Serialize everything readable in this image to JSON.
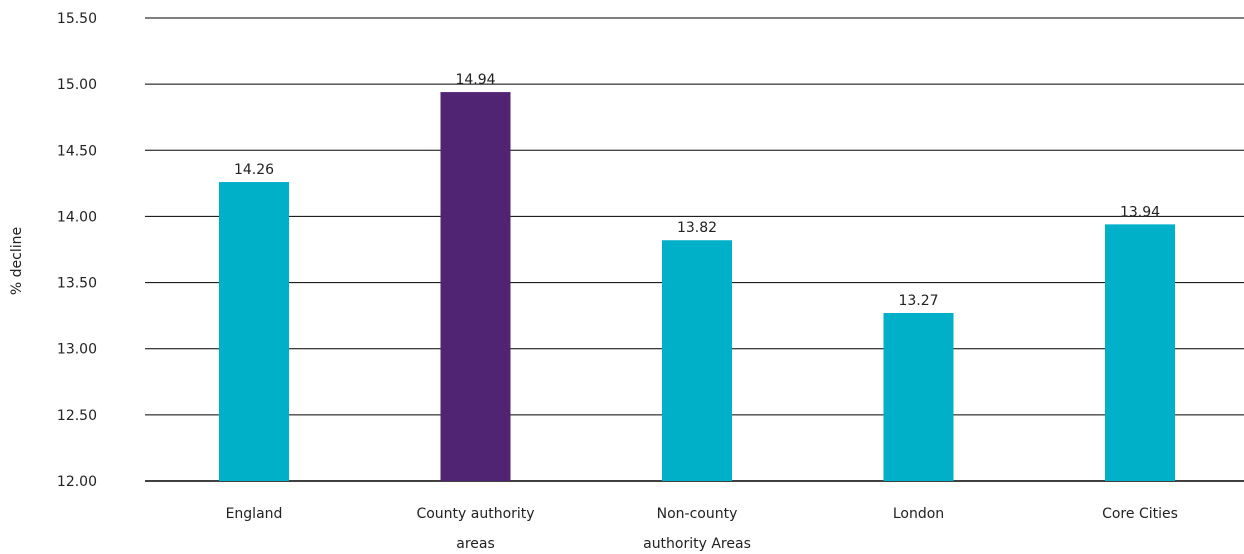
{
  "chart_data": {
    "type": "bar",
    "categories": [
      [
        "England"
      ],
      [
        "County authority",
        "areas"
      ],
      [
        "Non-county",
        "authority Areas"
      ],
      [
        "London"
      ],
      [
        "Core Cities"
      ]
    ],
    "values": [
      14.26,
      14.94,
      13.82,
      13.27,
      13.94
    ],
    "value_labels": [
      "14.26",
      "14.94",
      "13.82",
      "13.27",
      "13.94"
    ],
    "bar_colors": [
      "#00AFC8",
      "#512473",
      "#00AFC8",
      "#00AFC8",
      "#00AFC8"
    ],
    "ylabel": "% decline",
    "ylim": [
      12.0,
      15.5
    ],
    "yticks": [
      12.0,
      12.5,
      13.0,
      13.5,
      14.0,
      14.5,
      15.0,
      15.5
    ],
    "ytick_labels": [
      "12.00",
      "12.50",
      "13.00",
      "13.50",
      "14.00",
      "14.50",
      "15.00",
      "15.50"
    ],
    "grid": true
  }
}
